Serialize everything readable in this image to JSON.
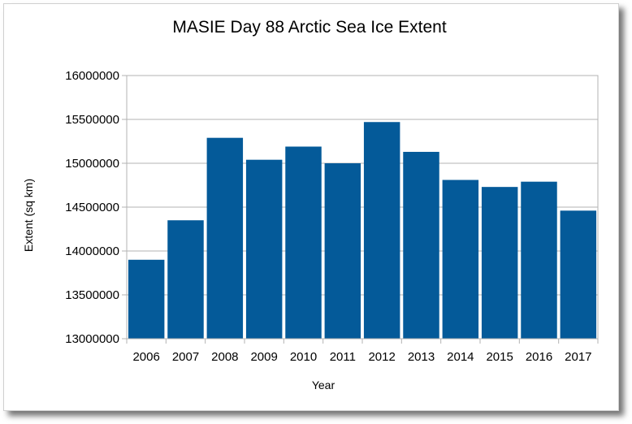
{
  "chart_data": {
    "type": "bar",
    "title": "MASIE Day 88 Arctic Sea Ice Extent",
    "xlabel": "Year",
    "ylabel": "Extent (sq km)",
    "categories": [
      "2006",
      "2007",
      "2008",
      "2009",
      "2010",
      "2011",
      "2012",
      "2013",
      "2014",
      "2015",
      "2016",
      "2017"
    ],
    "values": [
      13900000,
      14350000,
      15290000,
      15040000,
      15190000,
      15000000,
      15470000,
      15130000,
      14810000,
      14730000,
      14790000,
      14460000
    ],
    "ylim": [
      13000000,
      16000000
    ],
    "yticks": [
      "13000000",
      "13500000",
      "14000000",
      "14500000",
      "15000000",
      "15500000",
      "16000000"
    ],
    "grid": true,
    "legend": "none",
    "bar_color": "#045a99"
  }
}
